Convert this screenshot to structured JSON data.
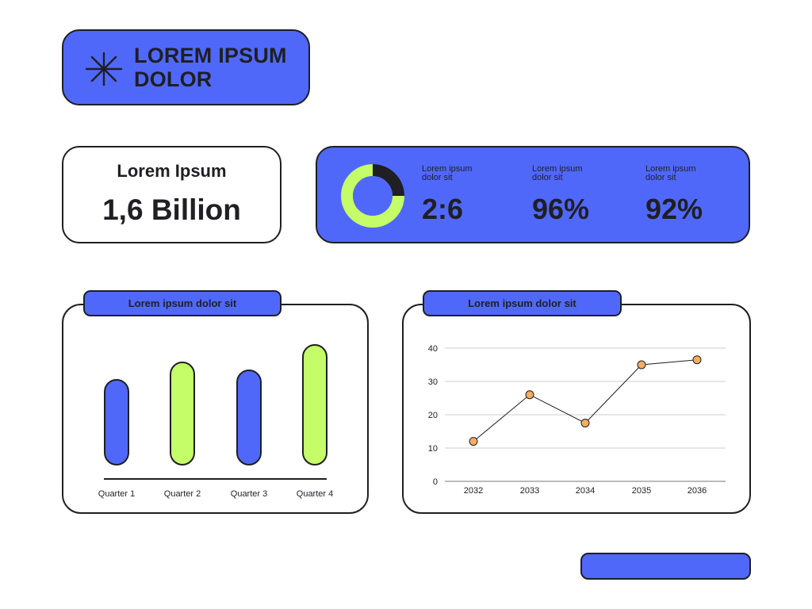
{
  "header": {
    "title_line1": "LOREM IPSUM",
    "title_line2": "DOLOR",
    "icon": "asterisk-icon"
  },
  "stat_card": {
    "label": "Lorem Ipsum",
    "value": "1,6 Billion"
  },
  "kpis": [
    {
      "label_line1": "Lorem ipsum",
      "label_line2": "dolor sit",
      "value": "2:6"
    },
    {
      "label_line1": "Lorem ipsum",
      "label_line2": "dolor sit",
      "value": "96%"
    },
    {
      "label_line1": "Lorem ipsum",
      "label_line2": "dolor sit",
      "value": "92%"
    }
  ],
  "colors": {
    "blue": "#5068fa",
    "green": "#c4fd67",
    "dark": "#1f1f24",
    "orange": "#f7ac5f",
    "white": "#ffffff",
    "grid": "#cccccc"
  },
  "chart_data": [
    {
      "type": "pie",
      "variant": "donut",
      "values": [
        2,
        6
      ],
      "colors": [
        "#1f1f24",
        "#c4fd67"
      ]
    },
    {
      "type": "bar",
      "title": "Lorem ipsum dolor sit",
      "categories": [
        "Quarter 1",
        "Quarter 2",
        "Quarter 3",
        "Quarter 4"
      ],
      "values": [
        107,
        129,
        119,
        151
      ],
      "colors": [
        "#5068fa",
        "#c4fd67",
        "#5068fa",
        "#c4fd67"
      ],
      "ylim": [
        0,
        170
      ],
      "grid": false
    },
    {
      "type": "line",
      "title": "Lorem ipsum dolor sit",
      "x": [
        "2032",
        "2033",
        "2034",
        "2035",
        "2036"
      ],
      "values": [
        12,
        26,
        17.5,
        35,
        36.5
      ],
      "ylim": [
        0,
        40
      ],
      "yticks": [
        0,
        10,
        20,
        30,
        40
      ],
      "grid": true
    }
  ]
}
